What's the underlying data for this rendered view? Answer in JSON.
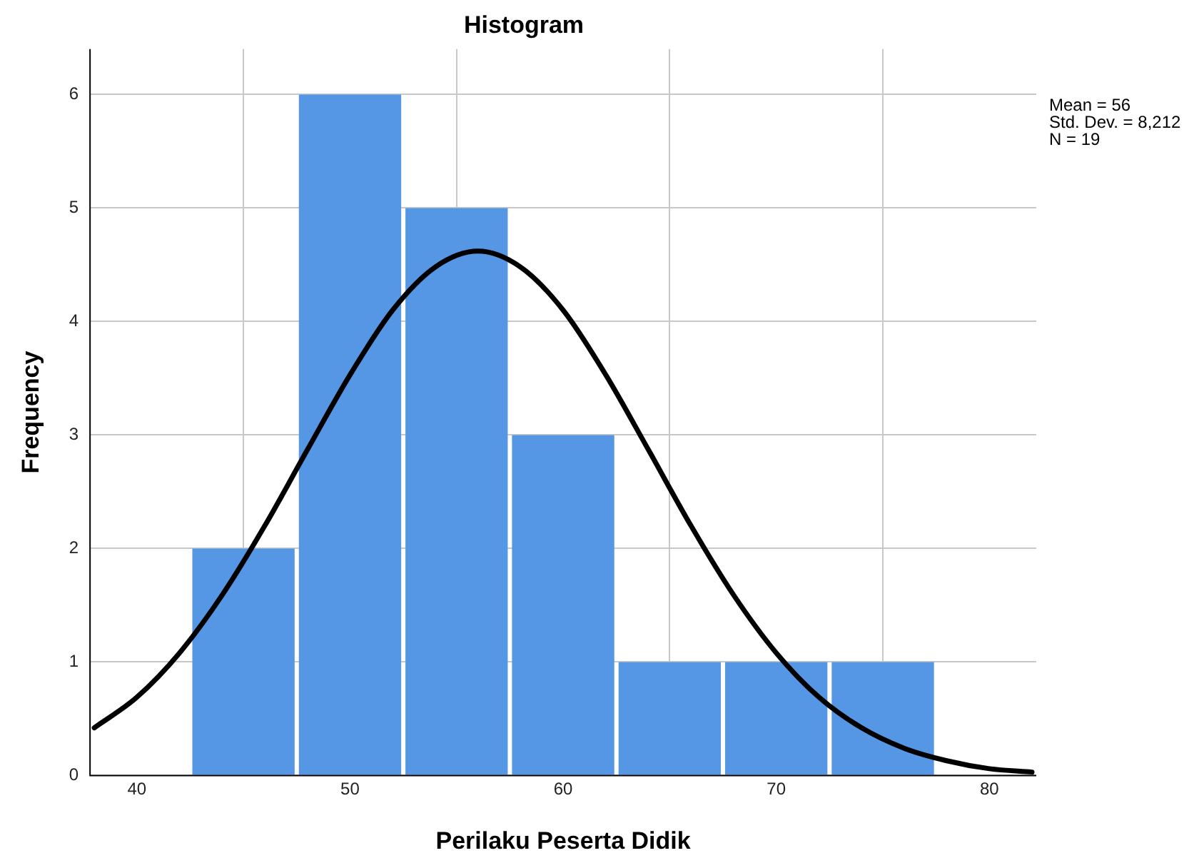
{
  "chart_data": {
    "type": "histogram",
    "title": "Histogram",
    "xlabel": "Perilaku Peserta Didik",
    "ylabel": "Frequency",
    "bins": [
      42.5,
      47.5,
      52.5,
      57.5,
      62.5,
      67.5,
      72.5,
      77.5
    ],
    "values": [
      2,
      6,
      5,
      3,
      1,
      1,
      1
    ],
    "color": "#5597e5",
    "series": [
      {
        "type": "line",
        "color": "#000000",
        "x": [
          38,
          40,
          42,
          44,
          46,
          48,
          50,
          52,
          54,
          56,
          58,
          60,
          62,
          64,
          66,
          68,
          70,
          72,
          74,
          76,
          78,
          80,
          82
        ],
        "values": [
          0.42,
          0.69,
          1.08,
          1.59,
          2.2,
          2.87,
          3.53,
          4.1,
          4.48,
          4.62,
          4.48,
          4.1,
          3.53,
          2.87,
          2.2,
          1.59,
          1.08,
          0.69,
          0.42,
          0.24,
          0.13,
          0.06,
          0.03
        ]
      }
    ],
    "xlim": [
      37.8,
      82.2
    ],
    "xticks": [
      40,
      50,
      60,
      70,
      80
    ],
    "ylim": [
      0,
      6.4
    ],
    "yticks": [
      0,
      1,
      2,
      3,
      4,
      5,
      6
    ],
    "grid": true,
    "legend": false,
    "line_style": "solid",
    "marker": "none",
    "annotations": [
      "Mean = 56",
      "Std. Dev. = 8,212",
      "N = 19"
    ]
  }
}
